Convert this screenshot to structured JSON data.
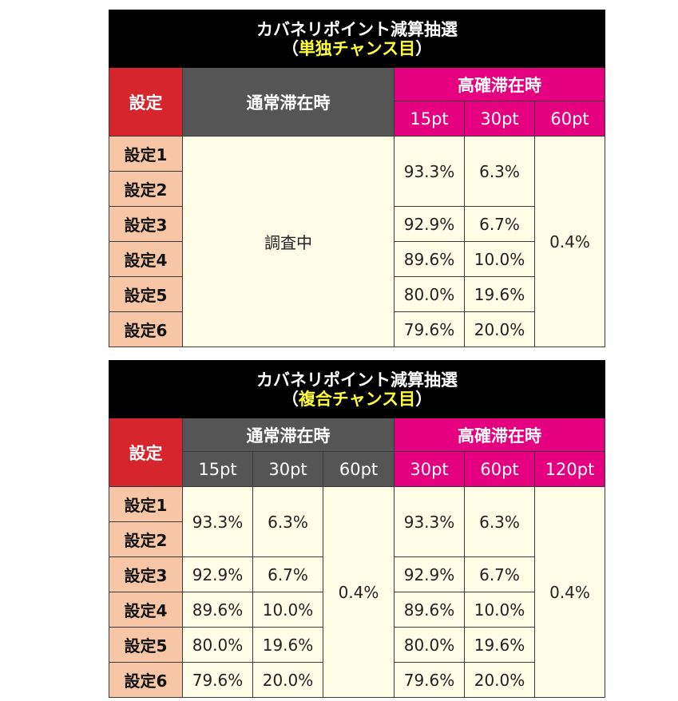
{
  "table1": {
    "title_line1": "カバネリポイント減算抽選",
    "title_paren_open": "（",
    "title_sub": "単独チャンス目",
    "title_paren_close": "）",
    "col_setting": "設定",
    "col_normal": "通常滞在時",
    "col_high": "高確滞在時",
    "high_pts": [
      "15pt",
      "30pt",
      "60pt"
    ],
    "settings": [
      "設定1",
      "設定2",
      "設定3",
      "設定4",
      "設定5",
      "設定6"
    ],
    "normal_value": "調査中",
    "high_15": [
      "93.3%",
      "92.9%",
      "89.6%",
      "80.0%",
      "79.6%"
    ],
    "high_30": [
      "6.3%",
      "6.7%",
      "10.0%",
      "19.6%",
      "20.0%"
    ],
    "high_60": "0.4%"
  },
  "table2": {
    "title_line1": "カバネリポイント減算抽選",
    "title_paren_open": "（",
    "title_sub": "複合チャンス目",
    "title_paren_close": "）",
    "col_setting": "設定",
    "col_normal": "通常滞在時",
    "col_high": "高確滞在時",
    "normal_pts": [
      "15pt",
      "30pt",
      "60pt"
    ],
    "high_pts": [
      "30pt",
      "60pt",
      "120pt"
    ],
    "settings": [
      "設定1",
      "設定2",
      "設定3",
      "設定4",
      "設定5",
      "設定6"
    ],
    "normal_a": [
      "93.3%",
      "92.9%",
      "89.6%",
      "80.0%",
      "79.6%"
    ],
    "normal_b": [
      "6.3%",
      "6.7%",
      "10.0%",
      "19.6%",
      "20.0%"
    ],
    "normal_c": "0.4%",
    "high_a": [
      "93.3%",
      "92.9%",
      "89.6%",
      "80.0%",
      "79.6%"
    ],
    "high_b": [
      "6.3%",
      "6.7%",
      "10.0%",
      "19.6%",
      "20.0%"
    ],
    "high_c": "0.4%"
  }
}
